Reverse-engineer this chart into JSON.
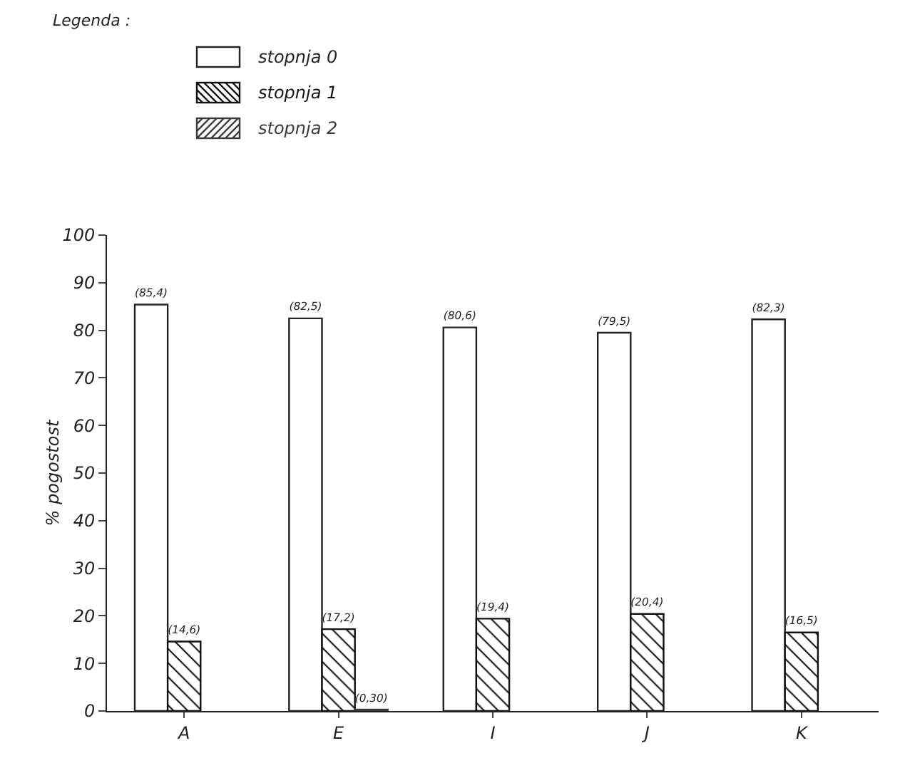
{
  "chart_data": {
    "type": "bar",
    "legend_title": "Legenda :",
    "ylabel": "% pogostost",
    "categories": [
      "A",
      "E",
      "I",
      "J",
      "K"
    ],
    "series": [
      {
        "name": "stopnja 0",
        "color": "#ffffff",
        "values": [
          85.4,
          82.5,
          80.6,
          79.5,
          82.3
        ],
        "value_labels": [
          "(85,4)",
          "(82,5)",
          "(80,6)",
          "(79,5)",
          "(82,3)"
        ]
      },
      {
        "name": "stopnja 1",
        "color": "#111111",
        "values": [
          14.6,
          17.2,
          19.4,
          20.4,
          16.5
        ],
        "value_labels": [
          "(14,6)",
          "(17,2)",
          "(19,4)",
          "(20,4)",
          "(16,5)"
        ]
      },
      {
        "name": "stopnja 2",
        "color": "#3a3a3a",
        "values": [
          null,
          0.3,
          null,
          null,
          null
        ],
        "value_labels": [
          null,
          "(0,30)",
          null,
          null,
          null
        ]
      }
    ],
    "ylim": [
      0,
      100
    ],
    "yticks": [
      0,
      10,
      20,
      30,
      40,
      50,
      60,
      70,
      80,
      90,
      100
    ],
    "grid": false,
    "legend": "top left"
  }
}
